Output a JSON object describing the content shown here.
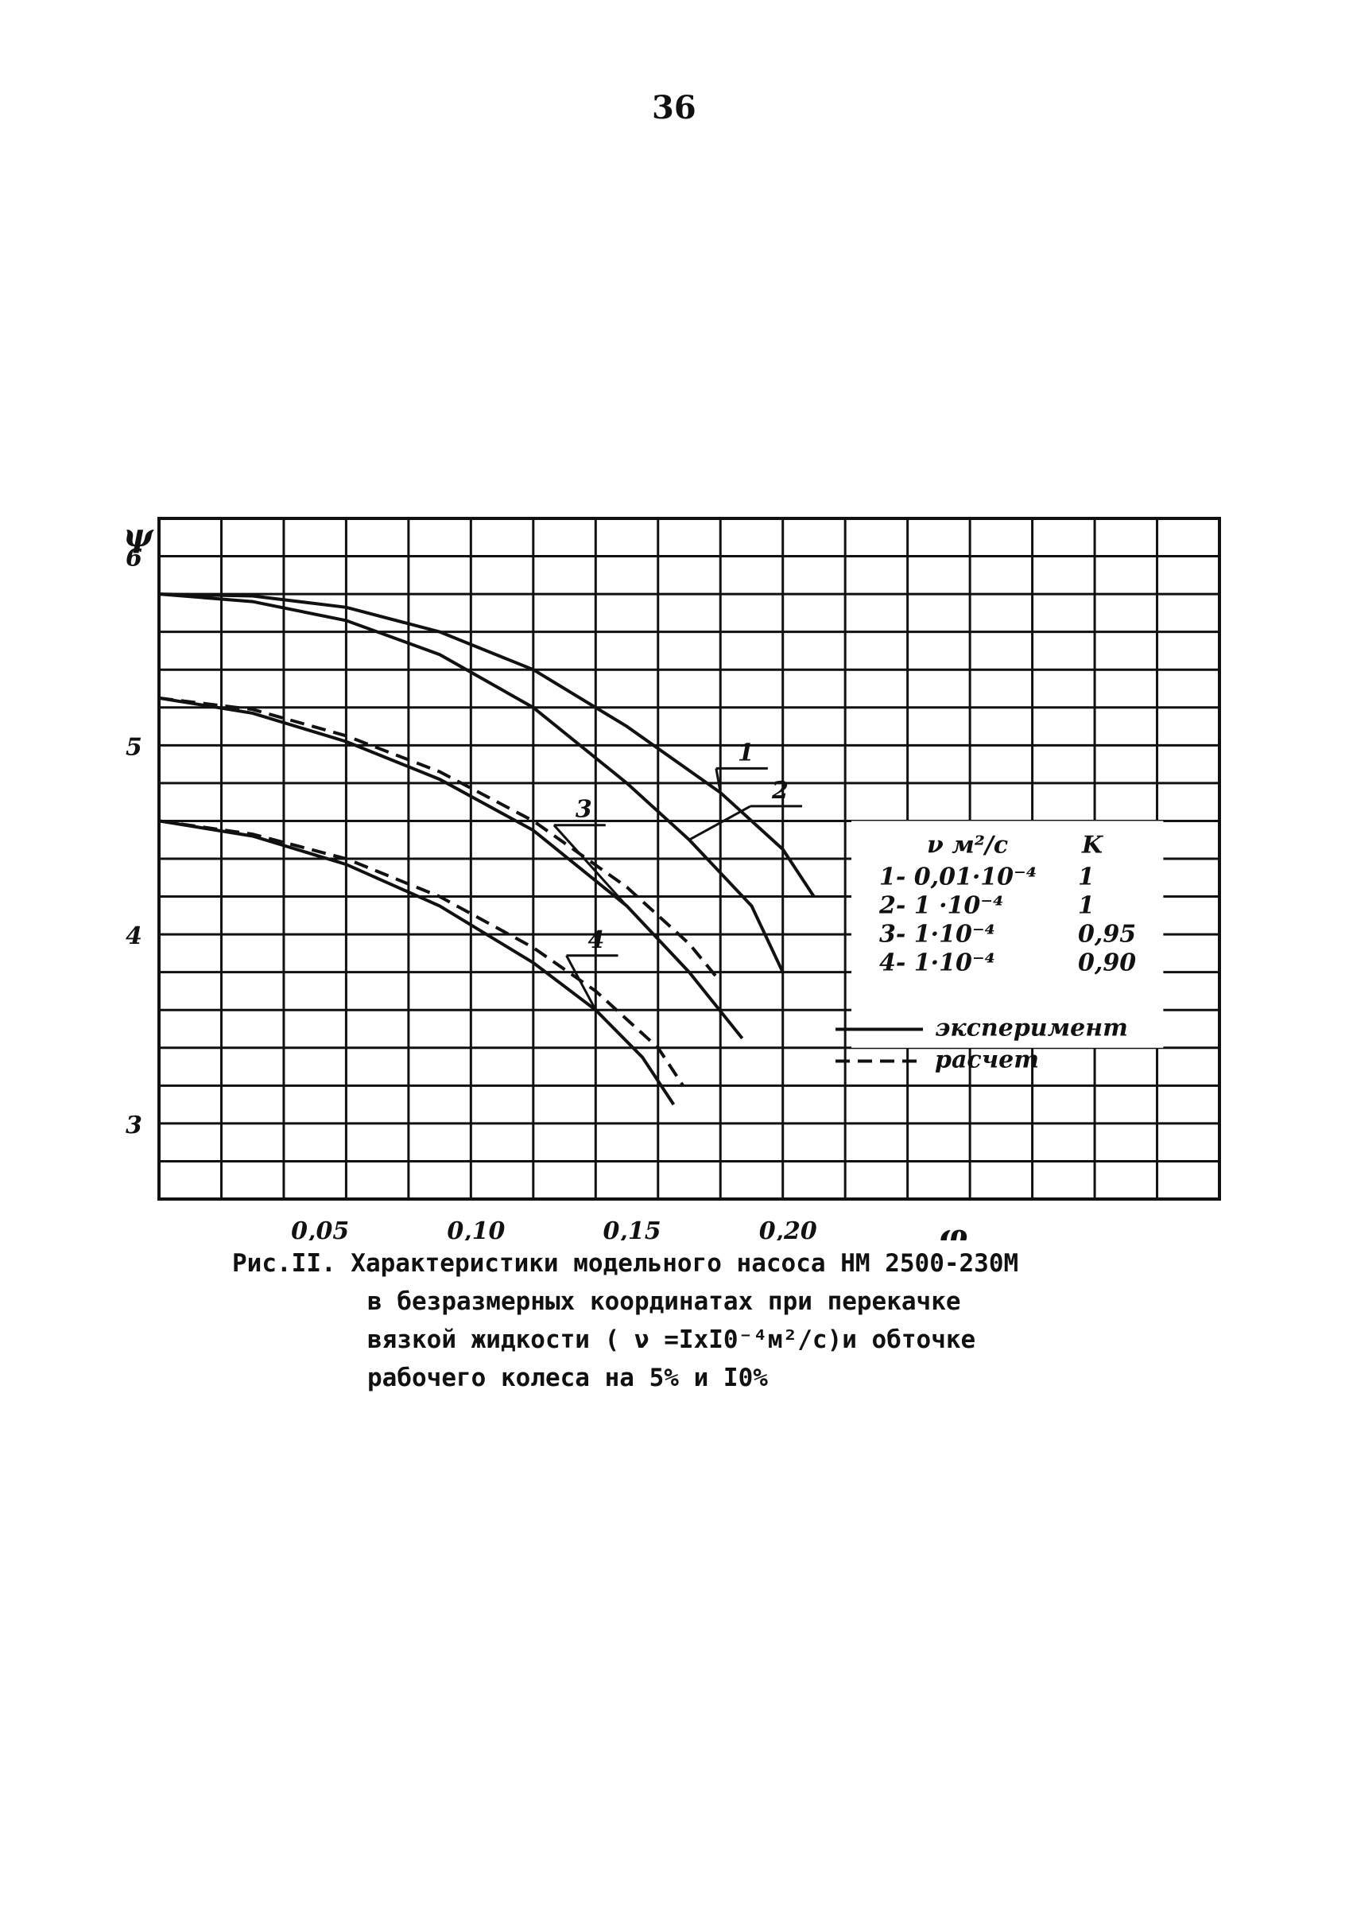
{
  "page_number": "36",
  "caption": {
    "line1": "Рис.II. Характеристики модельного насоса НМ 2500-230М",
    "line2": "в безразмерных координатах при перекачке",
    "line3": "вязкой жидкости ( ν =IxI0⁻⁴м²/с)и обточке",
    "line4": "рабочего колеса на 5% и I0%"
  },
  "chart_data": {
    "type": "line",
    "xlabel": "φ",
    "ylabel": "ψ",
    "xlim": [
      0,
      0.34
    ],
    "ylim": [
      2.6,
      6.2
    ],
    "x_ticks": [
      "0,05",
      "0,10",
      "0,15",
      "0,20"
    ],
    "y_ticks": [
      "6",
      "5",
      "4",
      "3"
    ],
    "grid": true,
    "series": [
      {
        "label": "1",
        "style": "solid",
        "x": [
          0,
          0.03,
          0.06,
          0.09,
          0.12,
          0.15,
          0.18,
          0.2,
          0.21
        ],
        "y": [
          5.8,
          5.79,
          5.73,
          5.6,
          5.4,
          5.1,
          4.75,
          4.45,
          4.2
        ]
      },
      {
        "label": "2",
        "style": "solid",
        "x": [
          0,
          0.03,
          0.06,
          0.09,
          0.12,
          0.15,
          0.17,
          0.19,
          0.2
        ],
        "y": [
          5.8,
          5.76,
          5.66,
          5.48,
          5.2,
          4.8,
          4.5,
          4.15,
          3.8
        ]
      },
      {
        "label": "3",
        "style": "solid",
        "x": [
          0,
          0.03,
          0.06,
          0.09,
          0.12,
          0.15,
          0.17,
          0.187
        ],
        "y": [
          5.25,
          5.17,
          5.02,
          4.82,
          4.55,
          4.15,
          3.8,
          3.45
        ]
      },
      {
        "label": "3",
        "style": "dashed",
        "x": [
          0,
          0.03,
          0.06,
          0.09,
          0.12,
          0.15,
          0.17,
          0.18
        ],
        "y": [
          5.25,
          5.19,
          5.05,
          4.86,
          4.6,
          4.25,
          3.95,
          3.75
        ]
      },
      {
        "label": "4",
        "style": "solid",
        "x": [
          0,
          0.03,
          0.06,
          0.09,
          0.12,
          0.14,
          0.155,
          0.165
        ],
        "y": [
          4.6,
          4.52,
          4.37,
          4.15,
          3.85,
          3.6,
          3.35,
          3.1
        ]
      },
      {
        "label": "4",
        "style": "dashed",
        "x": [
          0,
          0.03,
          0.06,
          0.09,
          0.12,
          0.14,
          0.16,
          0.168
        ],
        "y": [
          4.6,
          4.53,
          4.4,
          4.2,
          3.93,
          3.7,
          3.4,
          3.2
        ]
      }
    ],
    "legend": {
      "header": [
        "ν м²/с",
        "K"
      ],
      "rows": [
        [
          "1- 0,01·10⁻⁴",
          "1"
        ],
        [
          "2- 1  ·10⁻⁴",
          "1"
        ],
        [
          "3- 1·10⁻⁴",
          "0,95"
        ],
        [
          "4- 1·10⁻⁴",
          "0,90"
        ]
      ],
      "styles": [
        {
          "style": "solid",
          "label": "эксперимент"
        },
        {
          "style": "dashed",
          "label": "расчет"
        }
      ]
    }
  }
}
